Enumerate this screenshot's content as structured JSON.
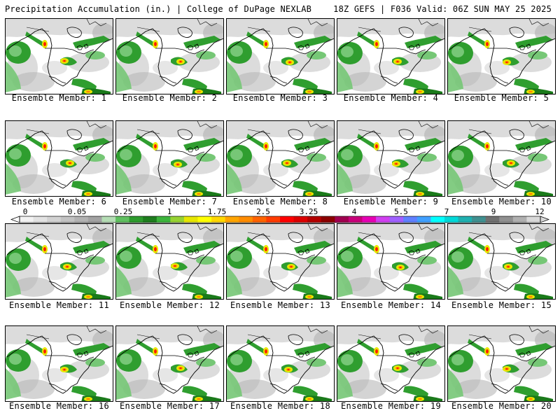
{
  "header": {
    "title": "Precipitation Accumulation (in.) | College of DuPage NEXLAB",
    "run_info": "18Z GEFS | F036 Valid: 06Z SUN MAY 25 2025"
  },
  "panels": [
    {
      "label": "Ensemble Member: 1"
    },
    {
      "label": "Ensemble Member: 2"
    },
    {
      "label": "Ensemble Member: 3"
    },
    {
      "label": "Ensemble Member: 4"
    },
    {
      "label": "Ensemble Member: 5"
    },
    {
      "label": "Ensemble Member: 6"
    },
    {
      "label": "Ensemble Member: 7"
    },
    {
      "label": "Ensemble Member: 8"
    },
    {
      "label": "Ensemble Member: 9"
    },
    {
      "label": "Ensemble Member: 10"
    },
    {
      "label": "Ensemble Member: 11"
    },
    {
      "label": "Ensemble Member: 12"
    },
    {
      "label": "Ensemble Member: 13"
    },
    {
      "label": "Ensemble Member: 14"
    },
    {
      "label": "Ensemble Member: 15"
    },
    {
      "label": "Ensemble Member: 16"
    },
    {
      "label": "Ensemble Member: 17"
    },
    {
      "label": "Ensemble Member: 18"
    },
    {
      "label": "Ensemble Member: 19"
    },
    {
      "label": "Ensemble Member: 20"
    }
  ],
  "colorbar": {
    "tick_labels": [
      "0",
      "0.05",
      "0.25",
      "1",
      "1.75",
      "2.5",
      "3.25",
      "4",
      "5.5",
      "7",
      "9",
      "12"
    ],
    "colors": [
      "#f2f2f2",
      "#e2e2e2",
      "#d2d2d2",
      "#c2c2c2",
      "#b2b2b2",
      "#a2a2a2",
      "#b4dcb4",
      "#5fbf5f",
      "#2d9b2d",
      "#1e7d1e",
      "#3cb43c",
      "#96d232",
      "#e6e600",
      "#ffff00",
      "#ffd700",
      "#ffa500",
      "#ff8c00",
      "#ff6400",
      "#ff3c00",
      "#ff0000",
      "#dc0000",
      "#b40000",
      "#8c0000",
      "#a00050",
      "#c8007a",
      "#e600b4",
      "#d040f0",
      "#a060ff",
      "#6080ff",
      "#40a0ff",
      "#00ffff",
      "#00d8d8",
      "#20b0b0",
      "#409090",
      "#707070",
      "#909090",
      "#b0b0b0",
      "#d8d8d8"
    ]
  },
  "map_colors": {
    "ocean_light": "#ffffff",
    "gray_light": "#dcdcdc",
    "gray_mid": "#b8b8b8",
    "gray_dark": "#8c8c8c",
    "green_light": "#76c776",
    "green": "#2f9e2f",
    "green_dark": "#1a7a1a",
    "yellow": "#e8e800",
    "orange": "#ff8c00",
    "red": "#ff2000",
    "borders": "#000000"
  }
}
